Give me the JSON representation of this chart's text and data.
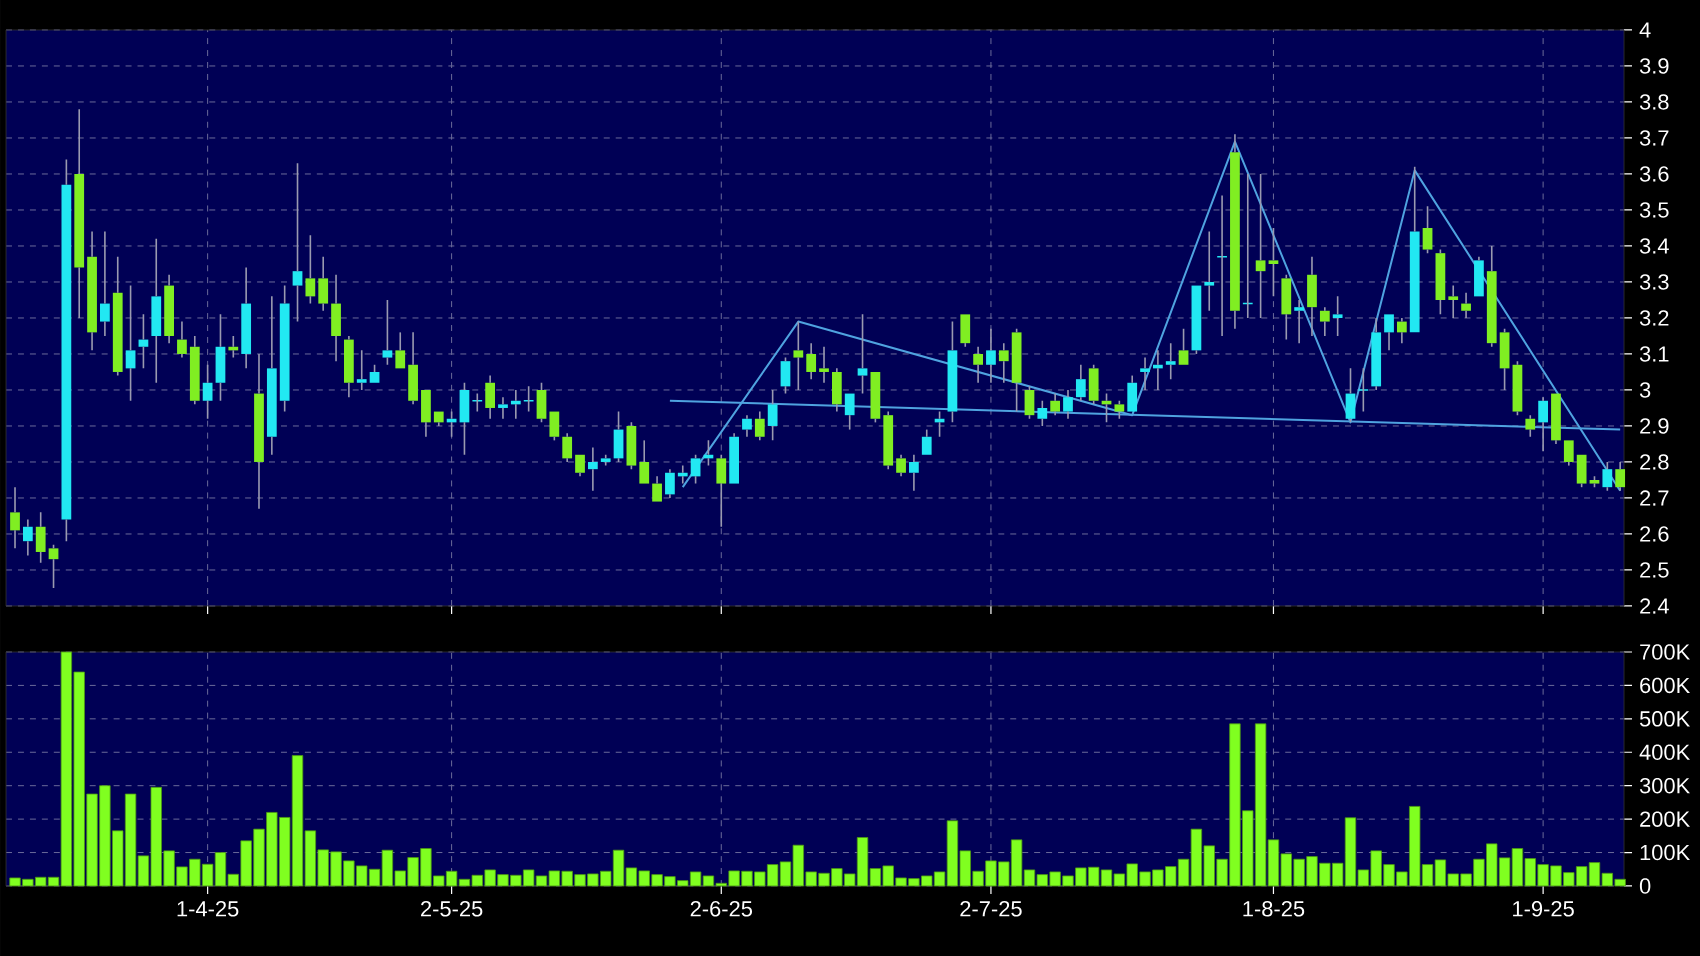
{
  "chart_data": [
    {
      "type": "candlestick",
      "tick_labels": "y",
      "grid": true,
      "ylim": [
        2.4,
        4
      ],
      "yticks": [
        2.4,
        2.5,
        2.6,
        2.7,
        2.8,
        2.9,
        3,
        3.1,
        3.2,
        3.3,
        3.4,
        3.5,
        3.6,
        3.7,
        3.8,
        3.9,
        4
      ],
      "categories": [
        null,
        null,
        null,
        null,
        null,
        null,
        null,
        null,
        null,
        null,
        null,
        null,
        null,
        null,
        null,
        null,
        null,
        null,
        null,
        null,
        null,
        null,
        null,
        null,
        null,
        null,
        null,
        null,
        null,
        null,
        null,
        null,
        null,
        null,
        null,
        null,
        null,
        null,
        null,
        null,
        null,
        null,
        null,
        null,
        null,
        null,
        null,
        null,
        null,
        null,
        null,
        null,
        null,
        null,
        null,
        null,
        null,
        null,
        null,
        null,
        null,
        null,
        null,
        null,
        null,
        null,
        null,
        null,
        null,
        null,
        null,
        null,
        null,
        null,
        null,
        null,
        null,
        null,
        null,
        null,
        null,
        null,
        null,
        null,
        null,
        null,
        null,
        null,
        null,
        null,
        null,
        null,
        null,
        null,
        null,
        null,
        null,
        null,
        null,
        null,
        null,
        null,
        null,
        null,
        null,
        null,
        null,
        null,
        null,
        null,
        null,
        null,
        null,
        null,
        null,
        null,
        null,
        null,
        null,
        null,
        null,
        null,
        null,
        null,
        null,
        null
      ],
      "ohlc": [
        [
          2.66,
          2.73,
          2.56,
          2.61
        ],
        [
          2.58,
          2.64,
          2.54,
          2.62
        ],
        [
          2.62,
          2.66,
          2.52,
          2.55
        ],
        [
          2.56,
          2.57,
          2.45,
          2.53
        ],
        [
          2.64,
          3.64,
          2.58,
          3.57
        ],
        [
          3.6,
          3.78,
          3.2,
          3.34
        ],
        [
          3.37,
          3.44,
          3.11,
          3.16
        ],
        [
          3.19,
          3.44,
          3.15,
          3.24
        ],
        [
          3.27,
          3.37,
          3.04,
          3.05
        ],
        [
          3.06,
          3.29,
          2.97,
          3.11
        ],
        [
          3.12,
          3.21,
          3.06,
          3.14
        ],
        [
          3.15,
          3.42,
          3.02,
          3.26
        ],
        [
          3.29,
          3.32,
          3.13,
          3.15
        ],
        [
          3.14,
          3.19,
          3.09,
          3.1
        ],
        [
          3.12,
          3.15,
          2.96,
          2.97
        ],
        [
          2.97,
          3.07,
          2.92,
          3.02
        ],
        [
          3.02,
          3.21,
          2.97,
          3.12
        ],
        [
          3.12,
          3.15,
          3.09,
          3.11
        ],
        [
          3.1,
          3.34,
          3.06,
          3.24
        ],
        [
          2.99,
          3.1,
          2.67,
          2.8
        ],
        [
          2.87,
          3.26,
          2.82,
          3.06
        ],
        [
          2.97,
          3.29,
          2.94,
          3.24
        ],
        [
          3.29,
          3.63,
          3.19,
          3.33
        ],
        [
          3.31,
          3.43,
          3.24,
          3.26
        ],
        [
          3.31,
          3.37,
          3.22,
          3.24
        ],
        [
          3.24,
          3.32,
          3.08,
          3.15
        ],
        [
          3.14,
          3.15,
          2.98,
          3.02
        ],
        [
          3.02,
          3.11,
          3.0,
          3.03
        ],
        [
          3.02,
          3.07,
          3.02,
          3.05
        ],
        [
          3.09,
          3.25,
          3.07,
          3.11
        ],
        [
          3.11,
          3.16,
          3.06,
          3.06
        ],
        [
          3.07,
          3.16,
          2.96,
          2.97
        ],
        [
          3.0,
          3.0,
          2.87,
          2.91
        ],
        [
          2.94,
          2.94,
          2.9,
          2.91
        ],
        [
          2.91,
          2.94,
          2.87,
          2.92
        ],
        [
          2.91,
          3.02,
          2.82,
          3.0
        ],
        [
          2.97,
          2.99,
          2.94,
          2.97
        ],
        [
          3.02,
          3.04,
          2.92,
          2.95
        ],
        [
          2.95,
          2.98,
          2.92,
          2.96
        ],
        [
          2.96,
          3.0,
          2.92,
          2.97
        ],
        [
          2.97,
          3.01,
          2.94,
          2.97
        ],
        [
          3.0,
          3.02,
          2.91,
          2.92
        ],
        [
          2.94,
          2.94,
          2.86,
          2.87
        ],
        [
          2.87,
          2.88,
          2.8,
          2.81
        ],
        [
          2.82,
          2.82,
          2.76,
          2.77
        ],
        [
          2.78,
          2.84,
          2.72,
          2.8
        ],
        [
          2.8,
          2.82,
          2.79,
          2.81
        ],
        [
          2.81,
          2.94,
          2.8,
          2.89
        ],
        [
          2.9,
          2.91,
          2.78,
          2.79
        ],
        [
          2.8,
          2.86,
          2.74,
          2.74
        ],
        [
          2.74,
          2.76,
          2.69,
          2.69
        ],
        [
          2.71,
          2.78,
          2.7,
          2.77
        ],
        [
          2.76,
          2.79,
          2.74,
          2.77
        ],
        [
          2.76,
          2.82,
          2.74,
          2.81
        ],
        [
          2.81,
          2.86,
          2.79,
          2.82
        ],
        [
          2.81,
          2.82,
          2.62,
          2.74
        ],
        [
          2.74,
          2.88,
          2.74,
          2.87
        ],
        [
          2.89,
          2.93,
          2.87,
          2.92
        ],
        [
          2.92,
          2.94,
          2.86,
          2.87
        ],
        [
          2.9,
          3.0,
          2.86,
          2.96
        ],
        [
          3.01,
          3.09,
          2.99,
          3.08
        ],
        [
          3.11,
          3.19,
          3.0,
          3.09
        ],
        [
          3.1,
          3.13,
          3.03,
          3.05
        ],
        [
          3.06,
          3.12,
          3.02,
          3.05
        ],
        [
          3.05,
          3.06,
          2.94,
          2.96
        ],
        [
          2.93,
          2.99,
          2.89,
          2.99
        ],
        [
          3.04,
          3.21,
          2.99,
          3.06
        ],
        [
          3.05,
          3.05,
          2.91,
          2.92
        ],
        [
          2.93,
          2.94,
          2.78,
          2.79
        ],
        [
          2.81,
          2.82,
          2.76,
          2.77
        ],
        [
          2.77,
          2.82,
          2.72,
          2.8
        ],
        [
          2.82,
          2.89,
          2.82,
          2.87
        ],
        [
          2.91,
          2.94,
          2.87,
          2.92
        ],
        [
          2.94,
          3.19,
          2.91,
          3.11
        ],
        [
          3.21,
          3.21,
          3.12,
          3.13
        ],
        [
          3.1,
          3.12,
          3.02,
          3.07
        ],
        [
          3.07,
          3.17,
          3.02,
          3.11
        ],
        [
          3.11,
          3.13,
          3.02,
          3.08
        ],
        [
          3.16,
          3.17,
          2.94,
          3.02
        ],
        [
          3.0,
          3.01,
          2.92,
          2.93
        ],
        [
          2.92,
          2.97,
          2.9,
          2.95
        ],
        [
          2.97,
          2.99,
          2.93,
          2.94
        ],
        [
          2.94,
          3.0,
          2.92,
          2.98
        ],
        [
          2.98,
          3.07,
          2.97,
          3.03
        ],
        [
          3.06,
          3.07,
          2.96,
          2.97
        ],
        [
          2.97,
          2.99,
          2.91,
          2.96
        ],
        [
          2.96,
          2.97,
          2.92,
          2.94
        ],
        [
          2.94,
          3.04,
          2.94,
          3.02
        ],
        [
          3.05,
          3.09,
          3.0,
          3.06
        ],
        [
          3.06,
          3.11,
          3.0,
          3.07
        ],
        [
          3.07,
          3.13,
          3.03,
          3.08
        ],
        [
          3.11,
          3.17,
          3.07,
          3.07
        ],
        [
          3.11,
          3.29,
          3.1,
          3.29
        ],
        [
          3.29,
          3.44,
          3.22,
          3.3
        ],
        [
          3.37,
          3.54,
          3.15,
          3.37
        ],
        [
          3.66,
          3.71,
          3.17,
          3.22
        ],
        [
          3.24,
          3.6,
          3.2,
          3.24
        ],
        [
          3.36,
          3.6,
          3.2,
          3.33
        ],
        [
          3.36,
          3.45,
          3.26,
          3.35
        ],
        [
          3.31,
          3.32,
          3.14,
          3.21
        ],
        [
          3.22,
          3.25,
          3.13,
          3.23
        ],
        [
          3.32,
          3.37,
          3.15,
          3.23
        ],
        [
          3.22,
          3.23,
          3.15,
          3.19
        ],
        [
          3.2,
          3.26,
          3.15,
          3.21
        ],
        [
          2.92,
          3.06,
          2.91,
          2.99
        ],
        [
          3.0,
          3.06,
          2.94,
          3.0
        ],
        [
          3.01,
          3.2,
          3.0,
          3.16
        ],
        [
          3.16,
          3.21,
          3.11,
          3.21
        ],
        [
          3.19,
          3.2,
          3.13,
          3.16
        ],
        [
          3.16,
          3.62,
          3.16,
          3.44
        ],
        [
          3.45,
          3.51,
          3.38,
          3.39
        ],
        [
          3.38,
          3.39,
          3.21,
          3.25
        ],
        [
          3.26,
          3.29,
          3.2,
          3.25
        ],
        [
          3.24,
          3.27,
          3.2,
          3.22
        ],
        [
          3.26,
          3.37,
          3.26,
          3.36
        ],
        [
          3.33,
          3.4,
          3.12,
          3.13
        ],
        [
          3.16,
          3.17,
          3.0,
          3.06
        ],
        [
          3.07,
          3.08,
          2.93,
          2.94
        ],
        [
          2.92,
          2.93,
          2.87,
          2.89
        ],
        [
          2.91,
          2.98,
          2.83,
          2.97
        ],
        [
          2.99,
          2.99,
          2.85,
          2.86
        ],
        [
          2.86,
          2.86,
          2.79,
          2.8
        ],
        [
          2.82,
          2.82,
          2.73,
          2.74
        ],
        [
          2.75,
          2.76,
          2.73,
          2.74
        ],
        [
          2.73,
          2.8,
          2.72,
          2.78
        ],
        [
          2.78,
          2.8,
          2.72,
          2.73
        ]
      ],
      "series": [
        {
          "type": "line",
          "color": "#4fa3e0",
          "values": [
            null,
            null,
            null,
            null,
            null,
            null,
            null,
            null,
            null,
            null,
            null,
            null,
            null,
            null,
            null,
            null,
            null,
            null,
            null,
            null,
            null,
            null,
            null,
            null,
            null,
            null,
            null,
            null,
            null,
            null,
            null,
            null,
            null,
            null,
            null,
            null,
            null,
            null,
            null,
            null,
            null,
            null,
            null,
            null,
            null,
            null,
            null,
            null,
            null,
            null,
            null,
            2.97,
            null,
            null,
            null,
            null,
            null,
            null,
            null,
            null,
            null,
            null,
            null,
            null,
            null,
            null,
            null,
            null,
            null,
            null,
            null,
            null,
            null,
            null,
            null,
            null,
            null,
            null,
            null,
            null,
            null,
            null,
            null,
            null,
            null,
            null,
            null,
            null,
            null,
            null,
            null,
            null,
            null,
            null,
            null,
            null,
            null,
            null,
            null,
            null,
            null,
            null,
            null,
            null,
            null,
            null,
            null,
            null,
            null,
            null,
            null,
            null,
            null,
            null,
            null,
            null,
            null,
            null,
            null,
            null,
            null,
            null,
            null,
            null,
            null,
            2.89
          ]
        },
        {
          "type": "line",
          "color": "#4fa3e0",
          "values": [
            null,
            null,
            null,
            null,
            null,
            null,
            null,
            null,
            null,
            null,
            null,
            null,
            null,
            null,
            null,
            null,
            null,
            null,
            null,
            null,
            null,
            null,
            null,
            null,
            null,
            null,
            null,
            null,
            null,
            null,
            null,
            null,
            null,
            null,
            null,
            null,
            null,
            null,
            null,
            null,
            null,
            null,
            null,
            null,
            null,
            null,
            null,
            null,
            null,
            null,
            null,
            null,
            2.73,
            null,
            null,
            null,
            null,
            null,
            null,
            null,
            null,
            3.19,
            null,
            null,
            null,
            null,
            null,
            null,
            null,
            null,
            null,
            null,
            null,
            null,
            null,
            null,
            null,
            null,
            null,
            null,
            null,
            null,
            null,
            null,
            null,
            null,
            null,
            2.93,
            null,
            null,
            null,
            null,
            null,
            null,
            null,
            3.69,
            null,
            null,
            null,
            null,
            null,
            null,
            null,
            null,
            2.91,
            null,
            null,
            null,
            null,
            3.61,
            null,
            null,
            null,
            null,
            null,
            null,
            null,
            null,
            null,
            null,
            null,
            null,
            null,
            null,
            null,
            2.72
          ]
        }
      ]
    },
    {
      "type": "bar",
      "color": "#80ff20",
      "grid": true,
      "ylim": [
        0,
        700000
      ],
      "yticks": [
        0,
        {
          "value": 100000,
          "label": "100K"
        },
        {
          "value": 200000,
          "label": "200K"
        },
        {
          "value": 300000,
          "label": "300K"
        },
        {
          "value": 400000,
          "label": "400K"
        },
        {
          "value": 500000,
          "label": "500K"
        },
        {
          "value": 600000,
          "label": "600K"
        },
        {
          "value": 700000,
          "label": "700K"
        }
      ],
      "categories": [
        null,
        null,
        null,
        null,
        null,
        null,
        null,
        null,
        null,
        null,
        null,
        null,
        null,
        null,
        null,
        "1-4-25",
        null,
        null,
        null,
        null,
        null,
        null,
        null,
        null,
        null,
        null,
        null,
        null,
        null,
        null,
        null,
        null,
        null,
        null,
        "2-5-25",
        null,
        null,
        null,
        null,
        null,
        null,
        null,
        null,
        null,
        null,
        null,
        null,
        null,
        null,
        null,
        null,
        null,
        null,
        null,
        null,
        "2-6-25",
        null,
        null,
        null,
        null,
        null,
        null,
        null,
        null,
        null,
        null,
        null,
        null,
        null,
        null,
        null,
        null,
        null,
        null,
        null,
        null,
        "2-7-25",
        null,
        null,
        null,
        null,
        null,
        null,
        null,
        null,
        null,
        null,
        null,
        null,
        null,
        null,
        null,
        null,
        null,
        null,
        null,
        null,
        null,
        "1-8-25",
        null,
        null,
        null,
        null,
        null,
        null,
        null,
        null,
        null,
        null,
        null,
        null,
        null,
        null,
        null,
        null,
        null,
        null,
        null,
        null,
        "1-9-25",
        null,
        null,
        null,
        null,
        null,
        null
      ],
      "values": [
        24000,
        20000,
        26000,
        26000,
        700000,
        640000,
        275000,
        300000,
        165000,
        275000,
        90000,
        295000,
        105000,
        57000,
        80000,
        65000,
        100000,
        35000,
        135000,
        170000,
        220000,
        205000,
        390000,
        165000,
        108000,
        102000,
        75000,
        60000,
        50000,
        107000,
        45000,
        85000,
        112000,
        30000,
        44000,
        20000,
        32000,
        48000,
        34000,
        32000,
        48000,
        30000,
        45000,
        44000,
        34000,
        36000,
        44000,
        107000,
        54000,
        45000,
        34000,
        28000,
        16000,
        42000,
        30000,
        8000,
        45000,
        44000,
        42000,
        64000,
        72000,
        122000,
        42000,
        38000,
        52000,
        36000,
        145000,
        52000,
        60000,
        24000,
        22000,
        30000,
        42000,
        195000,
        105000,
        44000,
        75000,
        72000,
        138000,
        48000,
        34000,
        42000,
        30000,
        54000,
        56000,
        48000,
        36000,
        66000,
        42000,
        48000,
        58000,
        80000,
        170000,
        120000,
        80000,
        485000,
        225000,
        485000,
        138000,
        96000,
        80000,
        88000,
        68000,
        68000,
        204000,
        48000,
        105000,
        64000,
        42000,
        238000,
        64000,
        78000,
        36000,
        36000,
        80000,
        126000,
        84000,
        112000,
        82000,
        64000,
        60000,
        40000,
        58000,
        70000,
        38000,
        20000
      ]
    }
  ]
}
